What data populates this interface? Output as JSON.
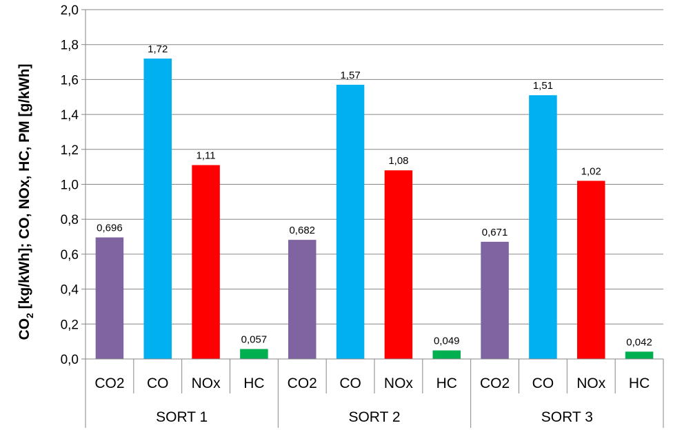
{
  "chart_data": {
    "type": "bar",
    "ylabel": "CO2 [kg/kWh]; CO, NOx, HC, PM [g/kWh]",
    "ylabel_parts": {
      "pre": "CO",
      "sub": "2",
      "post": " [kg/kWh]; CO, NOx, HC, PM [g/kWh]"
    },
    "ylim": [
      0,
      2.0
    ],
    "yticks": [
      0,
      0.2,
      0.4,
      0.6,
      0.8,
      1.0,
      1.2,
      1.4,
      1.6,
      1.8,
      2.0
    ],
    "ytick_labels": [
      "0,0",
      "0,2",
      "0,4",
      "0,6",
      "0,8",
      "1,0",
      "1,2",
      "1,4",
      "1,6",
      "1,8",
      "2,0"
    ],
    "grid": true,
    "colors": {
      "CO2": "#8064a2",
      "CO": "#00b0f0",
      "NOx": "#ff0000",
      "HC": "#00b050"
    },
    "groups": [
      {
        "name": "SORT 1",
        "bars": [
          {
            "category": "CO2",
            "value": 0.696,
            "label": "0,696"
          },
          {
            "category": "CO",
            "value": 1.72,
            "label": "1,72"
          },
          {
            "category": "NOx",
            "value": 1.11,
            "label": "1,11"
          },
          {
            "category": "HC",
            "value": 0.057,
            "label": "0,057"
          }
        ]
      },
      {
        "name": "SORT 2",
        "bars": [
          {
            "category": "CO2",
            "value": 0.682,
            "label": "0,682"
          },
          {
            "category": "CO",
            "value": 1.57,
            "label": "1,57"
          },
          {
            "category": "NOx",
            "value": 1.08,
            "label": "1,08"
          },
          {
            "category": "HC",
            "value": 0.049,
            "label": "0,049"
          }
        ]
      },
      {
        "name": "SORT 3",
        "bars": [
          {
            "category": "CO2",
            "value": 0.671,
            "label": "0,671"
          },
          {
            "category": "CO",
            "value": 1.51,
            "label": "1,51"
          },
          {
            "category": "NOx",
            "value": 1.02,
            "label": "1,02"
          },
          {
            "category": "HC",
            "value": 0.042,
            "label": "0,042"
          }
        ]
      }
    ]
  }
}
